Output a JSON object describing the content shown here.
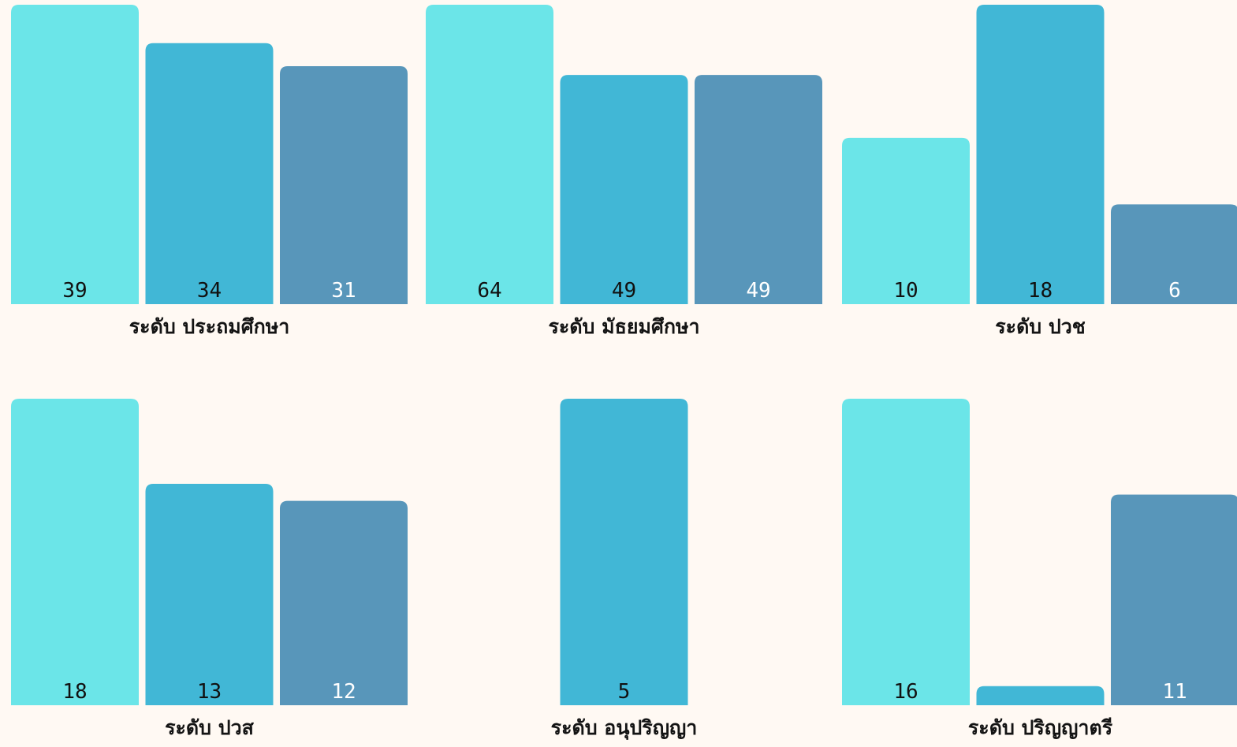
{
  "chart_data": {
    "type": "bar",
    "layout": "small-multiples",
    "legend": "none",
    "grid": false,
    "colors": [
      "#6be5e8",
      "#41b7d6",
      "#5896ba"
    ],
    "label_colors": [
      "#111111",
      "#111111",
      "#ffffff"
    ],
    "panels": [
      {
        "title": "ระดับ ประถมศึกษา",
        "values": [
          39,
          34,
          31
        ],
        "labels": [
          "39",
          "34",
          "31"
        ]
      },
      {
        "title": "ระดับ มัธยมศึกษา",
        "values": [
          64,
          49,
          49
        ],
        "labels": [
          "64",
          "49",
          "49"
        ]
      },
      {
        "title": "ระดับ ปวช",
        "values": [
          10,
          18,
          6
        ],
        "labels": [
          "10",
          "18",
          "6"
        ]
      },
      {
        "title": "ระดับ ปวส",
        "values": [
          18,
          13,
          12
        ],
        "labels": [
          "18",
          "13",
          "12"
        ]
      },
      {
        "title": "ระดับ อนุปริญญา",
        "values": [
          null,
          5,
          null
        ],
        "labels": [
          "",
          "5",
          ""
        ]
      },
      {
        "title": "ระดับ ปริญญาตรี",
        "values": [
          16,
          1,
          11
        ],
        "labels": [
          "16",
          "",
          "11"
        ]
      }
    ]
  }
}
